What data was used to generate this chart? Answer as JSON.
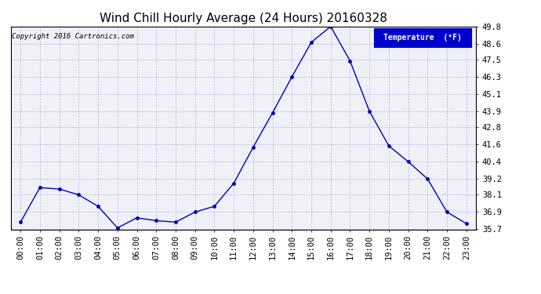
{
  "title": "Wind Chill Hourly Average (24 Hours) 20160328",
  "copyright_text": "Copyright 2016 Cartronics.com",
  "legend_label": "Temperature  (°F)",
  "x_labels": [
    "00:00",
    "01:00",
    "02:00",
    "03:00",
    "04:00",
    "05:00",
    "06:00",
    "07:00",
    "08:00",
    "09:00",
    "10:00",
    "11:00",
    "12:00",
    "13:00",
    "14:00",
    "15:00",
    "16:00",
    "17:00",
    "18:00",
    "19:00",
    "20:00",
    "21:00",
    "22:00",
    "23:00"
  ],
  "y_values": [
    36.2,
    38.6,
    38.5,
    38.1,
    37.3,
    35.8,
    36.5,
    36.3,
    36.2,
    36.9,
    37.3,
    38.9,
    41.4,
    43.8,
    46.3,
    48.7,
    49.8,
    47.4,
    43.9,
    41.5,
    40.4,
    39.2,
    36.9,
    36.1
  ],
  "ylim_min": 35.7,
  "ylim_max": 49.8,
  "yticks": [
    35.7,
    36.9,
    38.1,
    39.2,
    40.4,
    41.6,
    42.8,
    43.9,
    45.1,
    46.3,
    47.5,
    48.6,
    49.8
  ],
  "line_color": "#0000bb",
  "marker_color": "#0000bb",
  "bg_color": "#ffffff",
  "plot_bg_color": "#f0f0f8",
  "grid_color": "#bbbbdd",
  "title_fontsize": 11,
  "tick_fontsize": 7.5,
  "legend_bg_color": "#0000cc",
  "legend_text_color": "#ffffff",
  "figwidth": 6.9,
  "figheight": 3.75,
  "dpi": 100
}
